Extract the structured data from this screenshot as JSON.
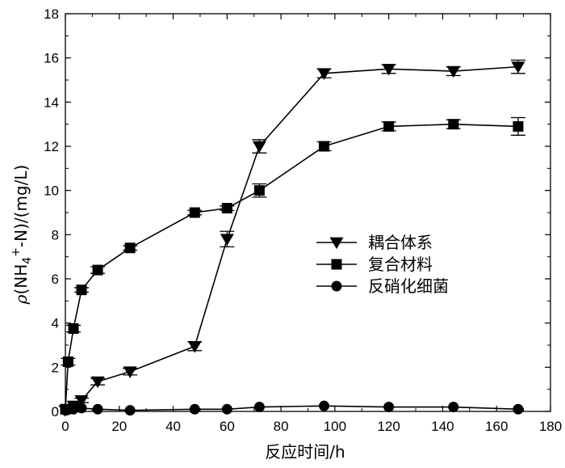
{
  "chart_data": {
    "type": "line",
    "xlabel": "反应时间/h",
    "ylabel_parts": {
      "rho": "ρ",
      "open": "(NH",
      "sub": "4",
      "sup": "+",
      "close": "-N)/(mg/L)"
    },
    "xlim": [
      0,
      180
    ],
    "ylim": [
      0,
      18
    ],
    "xticks": [
      0,
      20,
      40,
      60,
      80,
      100,
      120,
      140,
      160,
      180
    ],
    "yticks": [
      0,
      2,
      4,
      6,
      8,
      10,
      12,
      14,
      16,
      18
    ],
    "grid": false,
    "legend_position": "center-right",
    "series": [
      {
        "name": "耦合体系",
        "marker": "triangle-down",
        "color": "#000000",
        "x": [
          0,
          1,
          3,
          6,
          12,
          24,
          48,
          60,
          72,
          96,
          120,
          144,
          168
        ],
        "y": [
          0.05,
          0.1,
          0.25,
          0.5,
          1.35,
          1.8,
          2.95,
          7.8,
          12.0,
          15.3,
          15.5,
          15.4,
          15.6
        ],
        "err": [
          0,
          0,
          0,
          0.1,
          0.15,
          0.15,
          0.2,
          0.35,
          0.3,
          0.2,
          0.2,
          0.2,
          0.3
        ]
      },
      {
        "name": "复合材料",
        "marker": "square",
        "color": "#000000",
        "x": [
          0,
          1,
          3,
          6,
          12,
          24,
          48,
          60,
          72,
          96,
          120,
          144,
          168
        ],
        "y": [
          0.1,
          2.25,
          3.75,
          5.5,
          6.4,
          7.4,
          9.0,
          9.2,
          10.0,
          12.0,
          12.9,
          13.0,
          12.9
        ],
        "err": [
          0,
          0.15,
          0.15,
          0.1,
          0.15,
          0.1,
          0.1,
          0.1,
          0.3,
          0.2,
          0.2,
          0.2,
          0.4
        ]
      },
      {
        "name": "反硝化细菌",
        "marker": "circle",
        "color": "#000000",
        "x": [
          0,
          1,
          3,
          6,
          12,
          24,
          48,
          60,
          72,
          96,
          120,
          144,
          168
        ],
        "y": [
          0.05,
          0.08,
          0.1,
          0.15,
          0.1,
          0.05,
          0.1,
          0.1,
          0.2,
          0.25,
          0.2,
          0.2,
          0.1
        ],
        "err": [
          0,
          0,
          0,
          0,
          0,
          0,
          0,
          0,
          0,
          0,
          0,
          0,
          0
        ]
      }
    ]
  }
}
